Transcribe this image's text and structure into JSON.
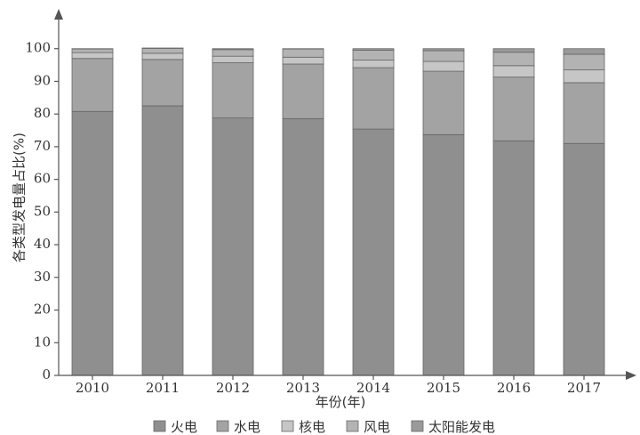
{
  "chart_data": {
    "type": "bar",
    "stacked": true,
    "categories": [
      "2010",
      "2011",
      "2012",
      "2013",
      "2014",
      "2015",
      "2016",
      "2017"
    ],
    "series": [
      {
        "name": "火电",
        "values": [
          80.8,
          82.5,
          78.8,
          78.6,
          75.4,
          73.7,
          71.8,
          71.0
        ],
        "color": "#8f8f8f"
      },
      {
        "name": "水电",
        "values": [
          16.2,
          14.2,
          16.9,
          16.7,
          18.8,
          19.4,
          19.5,
          18.6
        ],
        "color": "#a3a3a3"
      },
      {
        "name": "核电",
        "values": [
          1.8,
          1.9,
          2.0,
          2.1,
          2.3,
          3.0,
          3.5,
          3.9
        ],
        "color": "#c6c6c6"
      },
      {
        "name": "风电",
        "values": [
          1.1,
          1.5,
          2.0,
          2.5,
          3.0,
          3.3,
          4.1,
          4.8
        ],
        "color": "#b3b3b3"
      },
      {
        "name": "太阳能发电",
        "values": [
          0.1,
          0.1,
          0.3,
          0.1,
          0.5,
          0.6,
          1.1,
          1.7
        ],
        "color": "#9a9a9a"
      }
    ],
    "xlabel": "年份(年)",
    "ylabel": "各类型发电量占比(%)",
    "yticks": [
      "0",
      "10",
      "20",
      "30",
      "40",
      "50",
      "60",
      "70",
      "80",
      "90",
      "100"
    ],
    "ylim": [
      0,
      110
    ],
    "grid": false,
    "legend_position": "bottom"
  }
}
